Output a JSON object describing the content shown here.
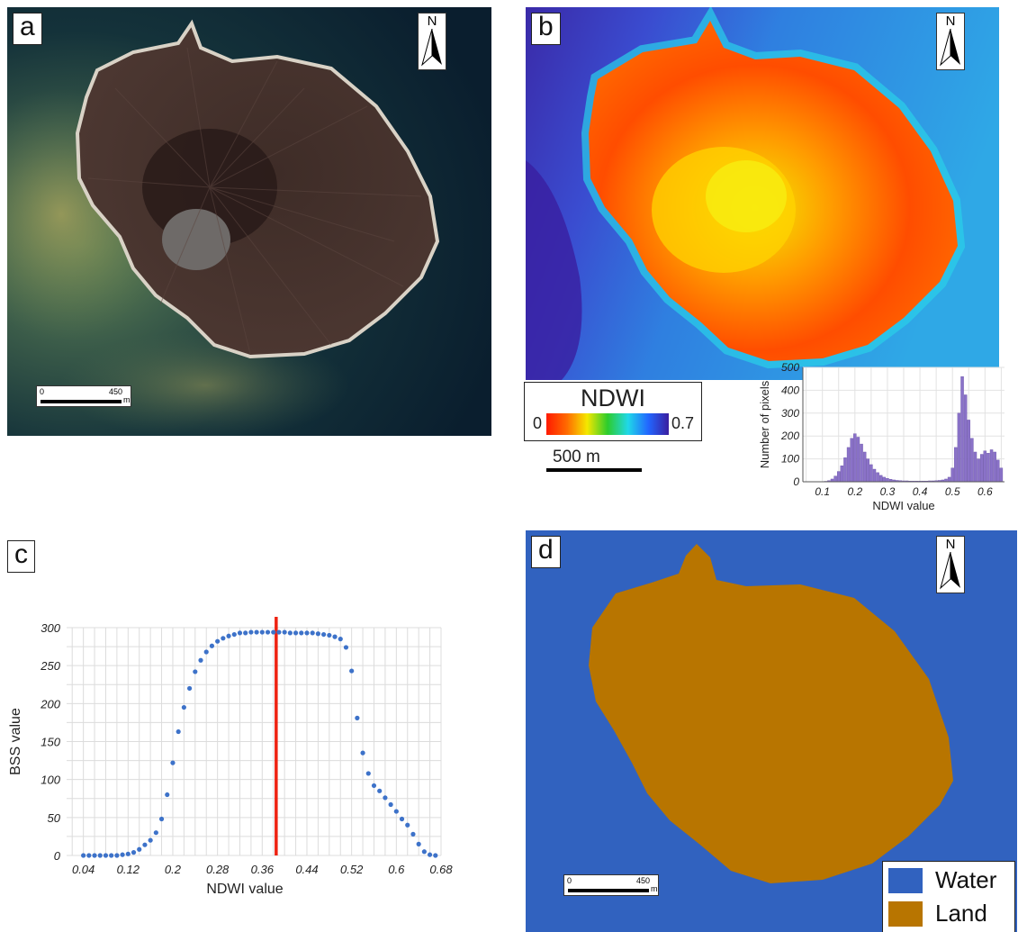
{
  "panels": {
    "a": {
      "label": "a",
      "north_label": "N",
      "scale": {
        "start": "0",
        "end": "450",
        "unit": "m"
      }
    },
    "b": {
      "label": "b",
      "north_label": "N",
      "colorbar": {
        "title": "NDWI",
        "min_label": "0",
        "max_label": "0.7",
        "colors": [
          "#ff1a00",
          "#ff6a00",
          "#f4e800",
          "#2dcc2d",
          "#20d8e8",
          "#2266ff",
          "#3a1ea0"
        ]
      },
      "scale": {
        "label": "500 m"
      }
    },
    "c": {
      "label": "c"
    },
    "d": {
      "label": "d",
      "north_label": "N",
      "scale": {
        "start": "0",
        "end": "450",
        "unit": "m"
      },
      "legend": [
        {
          "label": "Water",
          "color": "#3162bf"
        },
        {
          "label": "Land",
          "color": "#b87500"
        }
      ]
    }
  },
  "chart_data": [
    {
      "type": "bar",
      "panel": "b-inset",
      "xlabel": "NDWI value",
      "ylabel": "Number of pixels",
      "xlim": [
        0.04,
        0.66
      ],
      "ylim": [
        0,
        500
      ],
      "xticks": [
        "0.1",
        "0.2",
        "0.3",
        "0.4",
        "0.5",
        "0.6"
      ],
      "yticks": [
        "0",
        "100",
        "200",
        "300",
        "400",
        "500"
      ],
      "bar_color": "#8a72c8",
      "series": [
        {
          "values": [
            [
              0.11,
              2
            ],
            [
              0.12,
              5
            ],
            [
              0.13,
              12
            ],
            [
              0.14,
              25
            ],
            [
              0.15,
              45
            ],
            [
              0.16,
              70
            ],
            [
              0.17,
              105
            ],
            [
              0.18,
              150
            ],
            [
              0.19,
              190
            ],
            [
              0.2,
              210
            ],
            [
              0.21,
              195
            ],
            [
              0.22,
              165
            ],
            [
              0.23,
              130
            ],
            [
              0.24,
              100
            ],
            [
              0.25,
              75
            ],
            [
              0.26,
              55
            ],
            [
              0.27,
              40
            ],
            [
              0.28,
              28
            ],
            [
              0.29,
              20
            ],
            [
              0.3,
              15
            ],
            [
              0.31,
              11
            ],
            [
              0.32,
              8
            ],
            [
              0.33,
              6
            ],
            [
              0.34,
              5
            ],
            [
              0.35,
              4
            ],
            [
              0.36,
              4
            ],
            [
              0.37,
              3
            ],
            [
              0.38,
              3
            ],
            [
              0.39,
              3
            ],
            [
              0.4,
              3
            ],
            [
              0.41,
              3
            ],
            [
              0.42,
              3
            ],
            [
              0.43,
              4
            ],
            [
              0.44,
              4
            ],
            [
              0.45,
              5
            ],
            [
              0.46,
              6
            ],
            [
              0.47,
              8
            ],
            [
              0.48,
              12
            ],
            [
              0.49,
              20
            ],
            [
              0.5,
              60
            ],
            [
              0.51,
              150
            ],
            [
              0.52,
              300
            ],
            [
              0.53,
              460
            ],
            [
              0.54,
              380
            ],
            [
              0.55,
              270
            ],
            [
              0.56,
              190
            ],
            [
              0.57,
              130
            ],
            [
              0.58,
              100
            ],
            [
              0.59,
              120
            ],
            [
              0.6,
              135
            ],
            [
              0.61,
              125
            ],
            [
              0.62,
              140
            ],
            [
              0.63,
              130
            ],
            [
              0.64,
              95
            ],
            [
              0.65,
              60
            ]
          ]
        }
      ]
    },
    {
      "type": "scatter",
      "panel": "c",
      "xlabel": "NDWI value",
      "ylabel": "BSS value",
      "xlim": [
        0.01,
        0.68
      ],
      "ylim": [
        0,
        300
      ],
      "xticks": [
        "0.04",
        "0.12",
        "0.2",
        "0.28",
        "0.36",
        "0.44",
        "0.52",
        "0.6",
        "0.68"
      ],
      "yticks": [
        "0",
        "50",
        "100",
        "150",
        "200",
        "250",
        "300"
      ],
      "point_color": "#3d72c9",
      "threshold": {
        "x": 0.385,
        "color": "#ee2211"
      },
      "series": [
        {
          "points": [
            [
              0.04,
              0
            ],
            [
              0.05,
              0
            ],
            [
              0.06,
              0
            ],
            [
              0.07,
              0
            ],
            [
              0.08,
              0
            ],
            [
              0.09,
              0
            ],
            [
              0.1,
              0
            ],
            [
              0.11,
              1
            ],
            [
              0.12,
              2
            ],
            [
              0.13,
              4
            ],
            [
              0.14,
              8
            ],
            [
              0.15,
              14
            ],
            [
              0.16,
              20
            ],
            [
              0.17,
              30
            ],
            [
              0.18,
              48
            ],
            [
              0.19,
              80
            ],
            [
              0.2,
              122
            ],
            [
              0.21,
              163
            ],
            [
              0.22,
              195
            ],
            [
              0.23,
              220
            ],
            [
              0.24,
              242
            ],
            [
              0.25,
              257
            ],
            [
              0.26,
              268
            ],
            [
              0.27,
              276
            ],
            [
              0.28,
              282
            ],
            [
              0.29,
              286
            ],
            [
              0.3,
              289
            ],
            [
              0.31,
              291
            ],
            [
              0.32,
              293
            ],
            [
              0.33,
              293
            ],
            [
              0.34,
              294
            ],
            [
              0.35,
              294
            ],
            [
              0.36,
              294
            ],
            [
              0.37,
              294
            ],
            [
              0.38,
              294
            ],
            [
              0.39,
              294
            ],
            [
              0.4,
              294
            ],
            [
              0.41,
              293
            ],
            [
              0.42,
              293
            ],
            [
              0.43,
              293
            ],
            [
              0.44,
              293
            ],
            [
              0.45,
              293
            ],
            [
              0.46,
              292
            ],
            [
              0.47,
              291
            ],
            [
              0.48,
              290
            ],
            [
              0.49,
              288
            ],
            [
              0.5,
              285
            ],
            [
              0.51,
              274
            ],
            [
              0.52,
              243
            ],
            [
              0.53,
              181
            ],
            [
              0.54,
              135
            ],
            [
              0.55,
              108
            ],
            [
              0.56,
              92
            ],
            [
              0.57,
              85
            ],
            [
              0.58,
              76
            ],
            [
              0.59,
              67
            ],
            [
              0.6,
              58
            ],
            [
              0.61,
              48
            ],
            [
              0.62,
              40
            ],
            [
              0.63,
              28
            ],
            [
              0.64,
              15
            ],
            [
              0.65,
              5
            ],
            [
              0.66,
              1
            ],
            [
              0.67,
              0
            ]
          ]
        }
      ]
    }
  ]
}
